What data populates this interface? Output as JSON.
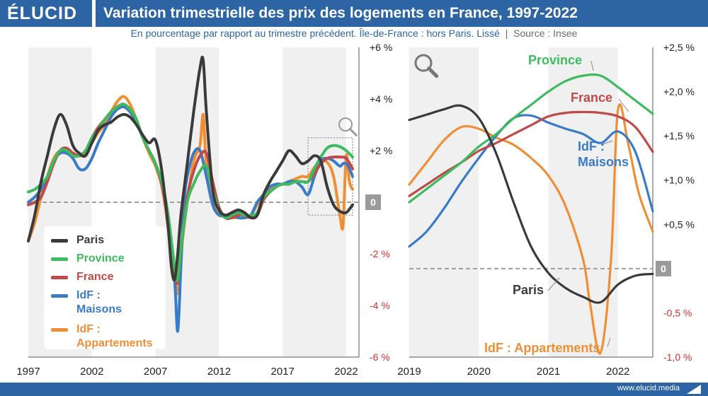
{
  "header": {
    "logo": "ÉLUCID",
    "title": "Variation trimestrielle des prix des logements en France, 1997-2022",
    "subtitle": "En pourcentage par rapport au trimestre précédent. Île-de-France : hors Paris. Lissé",
    "source": "Source : Insee"
  },
  "footer": {
    "url": "www.elucid.media"
  },
  "icons": [
    "magnifier-icon",
    "magnifier-icon"
  ],
  "colors": {
    "Paris": "#3a3a3a",
    "Province": "#3cbb5f",
    "France": "#bf4a4a",
    "IdF : Maisons": "#3a7bc8",
    "IdF : Appartements": "#ef8f35",
    "zero_line": "#9e9e9e",
    "negative_ticks": "#d92e2e"
  },
  "legend": [
    {
      "name": "Paris",
      "lines": [
        "Paris"
      ]
    },
    {
      "name": "Province",
      "lines": [
        "Province"
      ]
    },
    {
      "name": "France",
      "lines": [
        "France"
      ]
    },
    {
      "name": "IdF : Maisons",
      "lines": [
        "IdF :",
        "Maisons"
      ]
    },
    {
      "name": "IdF : Appartements",
      "lines": [
        "IdF :",
        "Appartements"
      ]
    }
  ],
  "chart_data": [
    {
      "type": "line",
      "xlim": [
        1997,
        2023
      ],
      "ylim": [
        -6,
        6
      ],
      "x_ticks": [
        "1997",
        "2002",
        "2007",
        "2012",
        "2017",
        "2022"
      ],
      "y_ticks": [
        "+6 %",
        "+4 %",
        "+2 %",
        "0",
        "-2 %",
        "-4 %",
        "-6 %"
      ],
      "y_tick_values": [
        6,
        4,
        2,
        0,
        -2,
        -4,
        -6
      ],
      "zero_badge": "0",
      "alternating_year_bands": true,
      "zoom_box": {
        "x": [
          2019,
          2022.5
        ],
        "y": [
          -0.5,
          2.5
        ]
      },
      "series": [
        {
          "name": "Paris",
          "x": [
            1997,
            1997.5,
            1998,
            1998.5,
            1999,
            1999.5,
            2000,
            2000.5,
            2001,
            2001.5,
            2002,
            2002.5,
            2003,
            2003.5,
            2004,
            2004.5,
            2005,
            2005.5,
            2006,
            2006.5,
            2007,
            2007.5,
            2008,
            2008.25,
            2008.5,
            2008.75,
            2009,
            2009.5,
            2010,
            2010.5,
            2010.75,
            2011,
            2011.5,
            2012,
            2012.5,
            2013,
            2013.5,
            2014,
            2014.5,
            2015,
            2015.5,
            2016,
            2016.5,
            2017,
            2017.5,
            2018,
            2018.5,
            2019,
            2019.5,
            2020,
            2020.5,
            2021,
            2021.5,
            2022,
            2022.5
          ],
          "values": [
            -1.5,
            -0.5,
            0.8,
            1.8,
            2.8,
            3.4,
            3.0,
            2.2,
            1.9,
            1.8,
            2.3,
            2.8,
            3.0,
            3.1,
            3.3,
            3.4,
            3.3,
            3.0,
            2.6,
            2.3,
            2.4,
            1.2,
            -1.0,
            -2.5,
            -3.0,
            -2.0,
            -0.5,
            1.5,
            3.5,
            5.2,
            5.5,
            3.5,
            0.5,
            -0.3,
            -0.5,
            -0.4,
            -0.3,
            -0.4,
            -0.6,
            -0.5,
            0.3,
            0.8,
            1.2,
            1.6,
            2.0,
            1.8,
            1.5,
            1.6,
            1.8,
            1.6,
            0.6,
            -0.1,
            -0.35,
            -0.4,
            -0.1
          ]
        },
        {
          "name": "Province",
          "x": [
            1997,
            1997.5,
            1998,
            1998.5,
            1999,
            1999.5,
            2000,
            2000.5,
            2001,
            2001.5,
            2002,
            2002.5,
            2003,
            2003.5,
            2004,
            2004.5,
            2005,
            2005.5,
            2006,
            2006.5,
            2007,
            2007.5,
            2008,
            2008.5,
            2008.75,
            2009,
            2009.5,
            2010,
            2010.5,
            2011,
            2011.5,
            2012,
            2012.5,
            2013,
            2013.5,
            2014,
            2014.5,
            2015,
            2015.5,
            2016,
            2016.5,
            2017,
            2017.5,
            2018,
            2018.5,
            2019,
            2019.5,
            2020,
            2020.5,
            2021,
            2021.5,
            2022,
            2022.5
          ],
          "values": [
            0.4,
            0.5,
            0.7,
            1.0,
            1.6,
            2.0,
            2.0,
            1.8,
            1.8,
            2.0,
            2.5,
            2.8,
            3.2,
            3.5,
            3.7,
            3.8,
            3.6,
            3.2,
            2.5,
            2.0,
            1.5,
            0.8,
            -0.5,
            -2.5,
            -3.0,
            -1.8,
            0.0,
            0.7,
            1.2,
            1.4,
            0.5,
            -0.3,
            -0.6,
            -0.5,
            -0.4,
            -0.5,
            -0.5,
            -0.4,
            0.2,
            0.4,
            0.6,
            0.7,
            0.7,
            0.8,
            0.8,
            0.8,
            1.3,
            1.75,
            2.1,
            2.2,
            2.15,
            2.0,
            1.75
          ]
        },
        {
          "name": "France",
          "x": [
            1997,
            1997.5,
            1998,
            1998.5,
            1999,
            1999.5,
            2000,
            2000.5,
            2001,
            2001.5,
            2002,
            2002.5,
            2003,
            2003.5,
            2004,
            2004.5,
            2005,
            2005.5,
            2006,
            2006.5,
            2007,
            2007.5,
            2008,
            2008.5,
            2008.75,
            2009,
            2009.5,
            2010,
            2010.5,
            2011,
            2011.5,
            2012,
            2012.5,
            2013,
            2013.5,
            2014,
            2014.5,
            2015,
            2015.5,
            2016,
            2016.5,
            2017,
            2017.5,
            2018,
            2018.5,
            2019,
            2019.5,
            2020,
            2020.5,
            2021,
            2021.5,
            2022,
            2022.5
          ],
          "values": [
            -0.1,
            0.0,
            0.2,
            0.8,
            1.5,
            2.0,
            2.1,
            1.9,
            1.8,
            1.9,
            2.5,
            2.9,
            3.2,
            3.5,
            3.7,
            3.8,
            3.6,
            3.2,
            2.5,
            2.0,
            1.5,
            0.7,
            -0.7,
            -2.7,
            -3.1,
            -1.9,
            0.2,
            1.2,
            1.8,
            1.9,
            0.8,
            -0.2,
            -0.6,
            -0.6,
            -0.5,
            -0.5,
            -0.6,
            -0.5,
            0.1,
            0.4,
            0.6,
            0.7,
            0.7,
            0.8,
            0.8,
            0.8,
            1.1,
            1.5,
            1.7,
            1.75,
            1.75,
            1.7,
            1.3
          ]
        },
        {
          "name": "IdF : Maisons",
          "x": [
            1997,
            1997.5,
            1998,
            1998.5,
            1999,
            1999.5,
            2000,
            2000.5,
            2001,
            2001.5,
            2002,
            2002.5,
            2003,
            2003.5,
            2004,
            2004.5,
            2005,
            2005.5,
            2006,
            2006.5,
            2007,
            2007.5,
            2008,
            2008.5,
            2008.75,
            2009,
            2009.25,
            2009.5,
            2010,
            2010.5,
            2011,
            2011.5,
            2012,
            2012.5,
            2013,
            2013.5,
            2014,
            2014.5,
            2015,
            2015.5,
            2016,
            2016.5,
            2017,
            2017.5,
            2018,
            2018.5,
            2019,
            2019.5,
            2020,
            2020.5,
            2021,
            2021.5,
            2021.75,
            2022,
            2022.25,
            2022.5
          ],
          "values": [
            0.0,
            0.2,
            0.5,
            1.0,
            1.6,
            1.9,
            1.9,
            1.7,
            1.3,
            1.3,
            1.7,
            2.3,
            2.8,
            3.3,
            3.6,
            3.7,
            3.5,
            3.1,
            2.5,
            2.0,
            1.5,
            0.7,
            -0.6,
            -3.0,
            -5.0,
            -2.5,
            0.0,
            1.0,
            1.9,
            2.0,
            1.0,
            -0.1,
            -0.5,
            -0.5,
            -0.5,
            -0.6,
            -0.6,
            -0.5,
            0.0,
            0.3,
            0.6,
            0.7,
            0.7,
            0.8,
            0.8,
            0.6,
            0.3,
            1.0,
            1.6,
            1.7,
            1.6,
            1.4,
            1.5,
            1.5,
            1.3,
            1.0
          ]
        },
        {
          "name": "IdF : Appartements",
          "x": [
            1997,
            1997.5,
            1998,
            1998.5,
            1999,
            1999.5,
            2000,
            2000.5,
            2001,
            2001.5,
            2002,
            2002.5,
            2003,
            2003.5,
            2004,
            2004.5,
            2005,
            2005.5,
            2006,
            2006.5,
            2007,
            2007.5,
            2008,
            2008.5,
            2008.75,
            2009,
            2009.5,
            2010,
            2010.5,
            2010.75,
            2011,
            2011.5,
            2012,
            2012.5,
            2013,
            2013.5,
            2014,
            2014.5,
            2015,
            2015.5,
            2016,
            2016.5,
            2017,
            2017.5,
            2018,
            2018.5,
            2019,
            2019.5,
            2020,
            2020.5,
            2021,
            2021.5,
            2021.75,
            2022,
            2022.25,
            2022.5
          ],
          "values": [
            -1.5,
            -0.8,
            0.2,
            1.0,
            1.7,
            2.0,
            2.0,
            1.9,
            1.8,
            2.0,
            2.3,
            2.7,
            3.0,
            3.5,
            3.9,
            4.1,
            3.8,
            3.2,
            2.5,
            1.9,
            1.4,
            0.6,
            -1.0,
            -3.0,
            -3.5,
            -2.0,
            0.0,
            1.6,
            2.2,
            3.4,
            1.5,
            0.2,
            -0.4,
            -0.6,
            -0.6,
            -0.6,
            -0.6,
            -0.5,
            -0.1,
            0.3,
            0.5,
            0.7,
            0.7,
            0.8,
            0.9,
            1.0,
            1.0,
            1.35,
            1.6,
            1.55,
            1.0,
            -0.5,
            -0.9,
            1.8,
            0.8,
            0.5
          ]
        }
      ]
    },
    {
      "type": "line",
      "xlim": [
        2019,
        2022.5
      ],
      "ylim": [
        -1.0,
        2.5
      ],
      "x_ticks": [
        "2019",
        "2020",
        "2021",
        "2022"
      ],
      "y_ticks": [
        "+2,5 %",
        "+2,0 %",
        "+1,5 %",
        "+1,0 %",
        "+0,5 %",
        "0",
        "-0,5 %",
        "-1,0 %"
      ],
      "y_tick_values": [
        2.5,
        2.0,
        1.5,
        1.0,
        0.5,
        0,
        -0.5,
        -1.0
      ],
      "zero_badge": "0",
      "alternating_year_bands": true,
      "series": [
        {
          "name": "Paris",
          "label": "Paris",
          "x": [
            2019,
            2019.25,
            2019.5,
            2019.75,
            2020,
            2020.25,
            2020.5,
            2020.75,
            2021,
            2021.25,
            2021.5,
            2021.75,
            2022,
            2022.25,
            2022.5
          ],
          "values": [
            1.68,
            1.74,
            1.8,
            1.84,
            1.7,
            1.3,
            0.75,
            0.25,
            -0.05,
            -0.22,
            -0.32,
            -0.38,
            -0.18,
            -0.08,
            -0.06
          ]
        },
        {
          "name": "Province",
          "label": "Province",
          "x": [
            2019,
            2019.25,
            2019.5,
            2019.75,
            2020,
            2020.25,
            2020.5,
            2020.75,
            2021,
            2021.25,
            2021.5,
            2021.75,
            2022,
            2022.25,
            2022.5
          ],
          "values": [
            0.75,
            0.9,
            1.05,
            1.2,
            1.38,
            1.52,
            1.7,
            1.85,
            2.0,
            2.12,
            2.18,
            2.18,
            2.05,
            1.9,
            1.75
          ]
        },
        {
          "name": "France",
          "label": "France",
          "x": [
            2019,
            2019.25,
            2019.5,
            2019.75,
            2020,
            2020.25,
            2020.5,
            2020.75,
            2021,
            2021.25,
            2021.5,
            2021.75,
            2022,
            2022.25,
            2022.5
          ],
          "values": [
            0.82,
            0.95,
            1.08,
            1.2,
            1.33,
            1.42,
            1.52,
            1.62,
            1.72,
            1.76,
            1.77,
            1.76,
            1.72,
            1.6,
            1.32
          ]
        },
        {
          "name": "IdF : Maisons",
          "label": "IdF :|Maisons",
          "x": [
            2019,
            2019.25,
            2019.5,
            2019.75,
            2020,
            2020.25,
            2020.5,
            2020.75,
            2021,
            2021.25,
            2021.5,
            2021.75,
            2022,
            2022.25,
            2022.5
          ],
          "values": [
            0.25,
            0.42,
            0.68,
            0.98,
            1.25,
            1.5,
            1.7,
            1.73,
            1.65,
            1.58,
            1.52,
            1.42,
            1.55,
            1.32,
            0.65
          ]
        },
        {
          "name": "IdF : Appartements",
          "label": "IdF : Appartements",
          "x": [
            2019,
            2019.25,
            2019.5,
            2019.75,
            2020,
            2020.25,
            2020.5,
            2020.75,
            2021,
            2021.25,
            2021.5,
            2021.6,
            2021.75,
            2021.9,
            2022,
            2022.15,
            2022.3,
            2022.5
          ],
          "values": [
            0.95,
            1.2,
            1.45,
            1.6,
            1.58,
            1.48,
            1.4,
            1.25,
            1.05,
            0.7,
            0.1,
            -0.4,
            -0.95,
            0.1,
            1.8,
            1.4,
            0.85,
            0.42
          ]
        }
      ]
    }
  ]
}
